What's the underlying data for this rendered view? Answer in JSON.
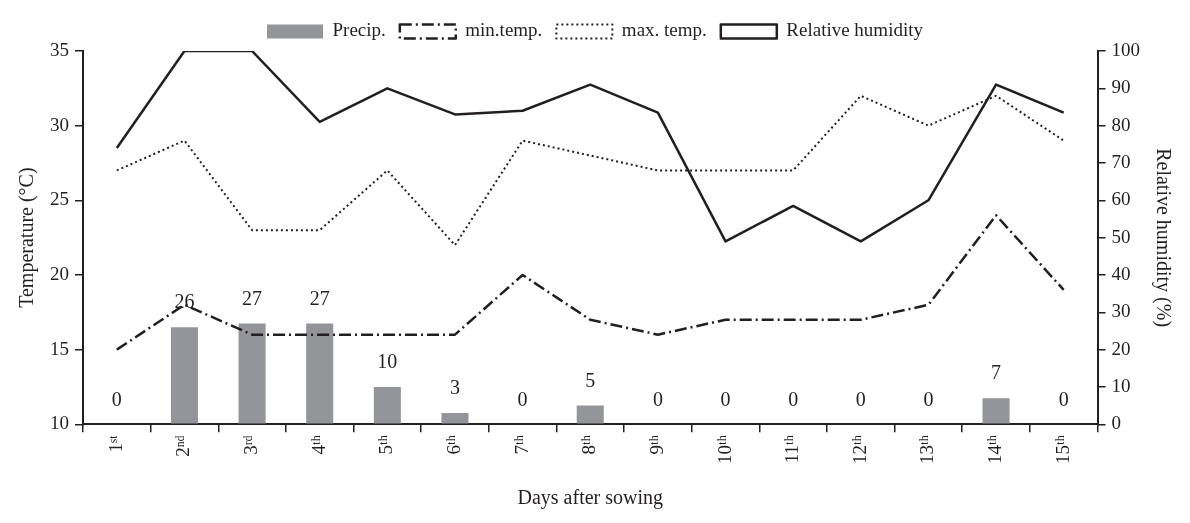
{
  "chart_data": {
    "type": "line",
    "xlabel": "Days after sowing",
    "ylabel": "Temperature (°C)",
    "y2label": "Relative humidity (%)",
    "categories": [
      "1ˢᵗ",
      "2ⁿᵈ",
      "3ʳᵈ",
      "4ᵗʰ",
      "5ᵗʰ",
      "6ᵗʰ",
      "7ᵗʰ",
      "8ᵗʰ",
      "9ᵗʰ",
      "10ᵗʰ",
      "11ᵗʰ",
      "12ᵗʰ",
      "13ᵗʰ",
      "14ᵗʰ",
      "15ᵗʰ"
    ],
    "series": [
      {
        "name": "Precip.",
        "type": "bar",
        "axis": "y2",
        "color": "#939598",
        "data_labels": true,
        "values": [
          0,
          26,
          27,
          27,
          10,
          3,
          0,
          5,
          0,
          0,
          0,
          0,
          0,
          7,
          0
        ]
      },
      {
        "name": "min.temp.",
        "line_style": "dashed",
        "color": "#231f20",
        "values": [
          15,
          18,
          16,
          16,
          16,
          16,
          20,
          17,
          16,
          17,
          17,
          17,
          18,
          24,
          19
        ]
      },
      {
        "name": "max. temp.",
        "line_style": "dotted",
        "color": "#231f20",
        "values": [
          27,
          29,
          23,
          23,
          27,
          22,
          29,
          28,
          27,
          27,
          27,
          32,
          30,
          32,
          29
        ]
      },
      {
        "name": "Relative humidity",
        "line_style": "solid",
        "axis": "y2",
        "color": "#231f20",
        "values": [
          74,
          100,
          100,
          81,
          90,
          83,
          84,
          91,
          83.5,
          49,
          58.5,
          49,
          60,
          91,
          83.5
        ]
      }
    ],
    "ylim": [
      10,
      35
    ],
    "yticks": [
      10,
      15,
      20,
      25,
      30,
      35
    ],
    "y2lim": [
      0,
      100
    ],
    "y2ticks": [
      0,
      10,
      20,
      30,
      40,
      50,
      60,
      70,
      80,
      90,
      100
    ],
    "legend": "top",
    "marker": "none",
    "grid": false
  }
}
